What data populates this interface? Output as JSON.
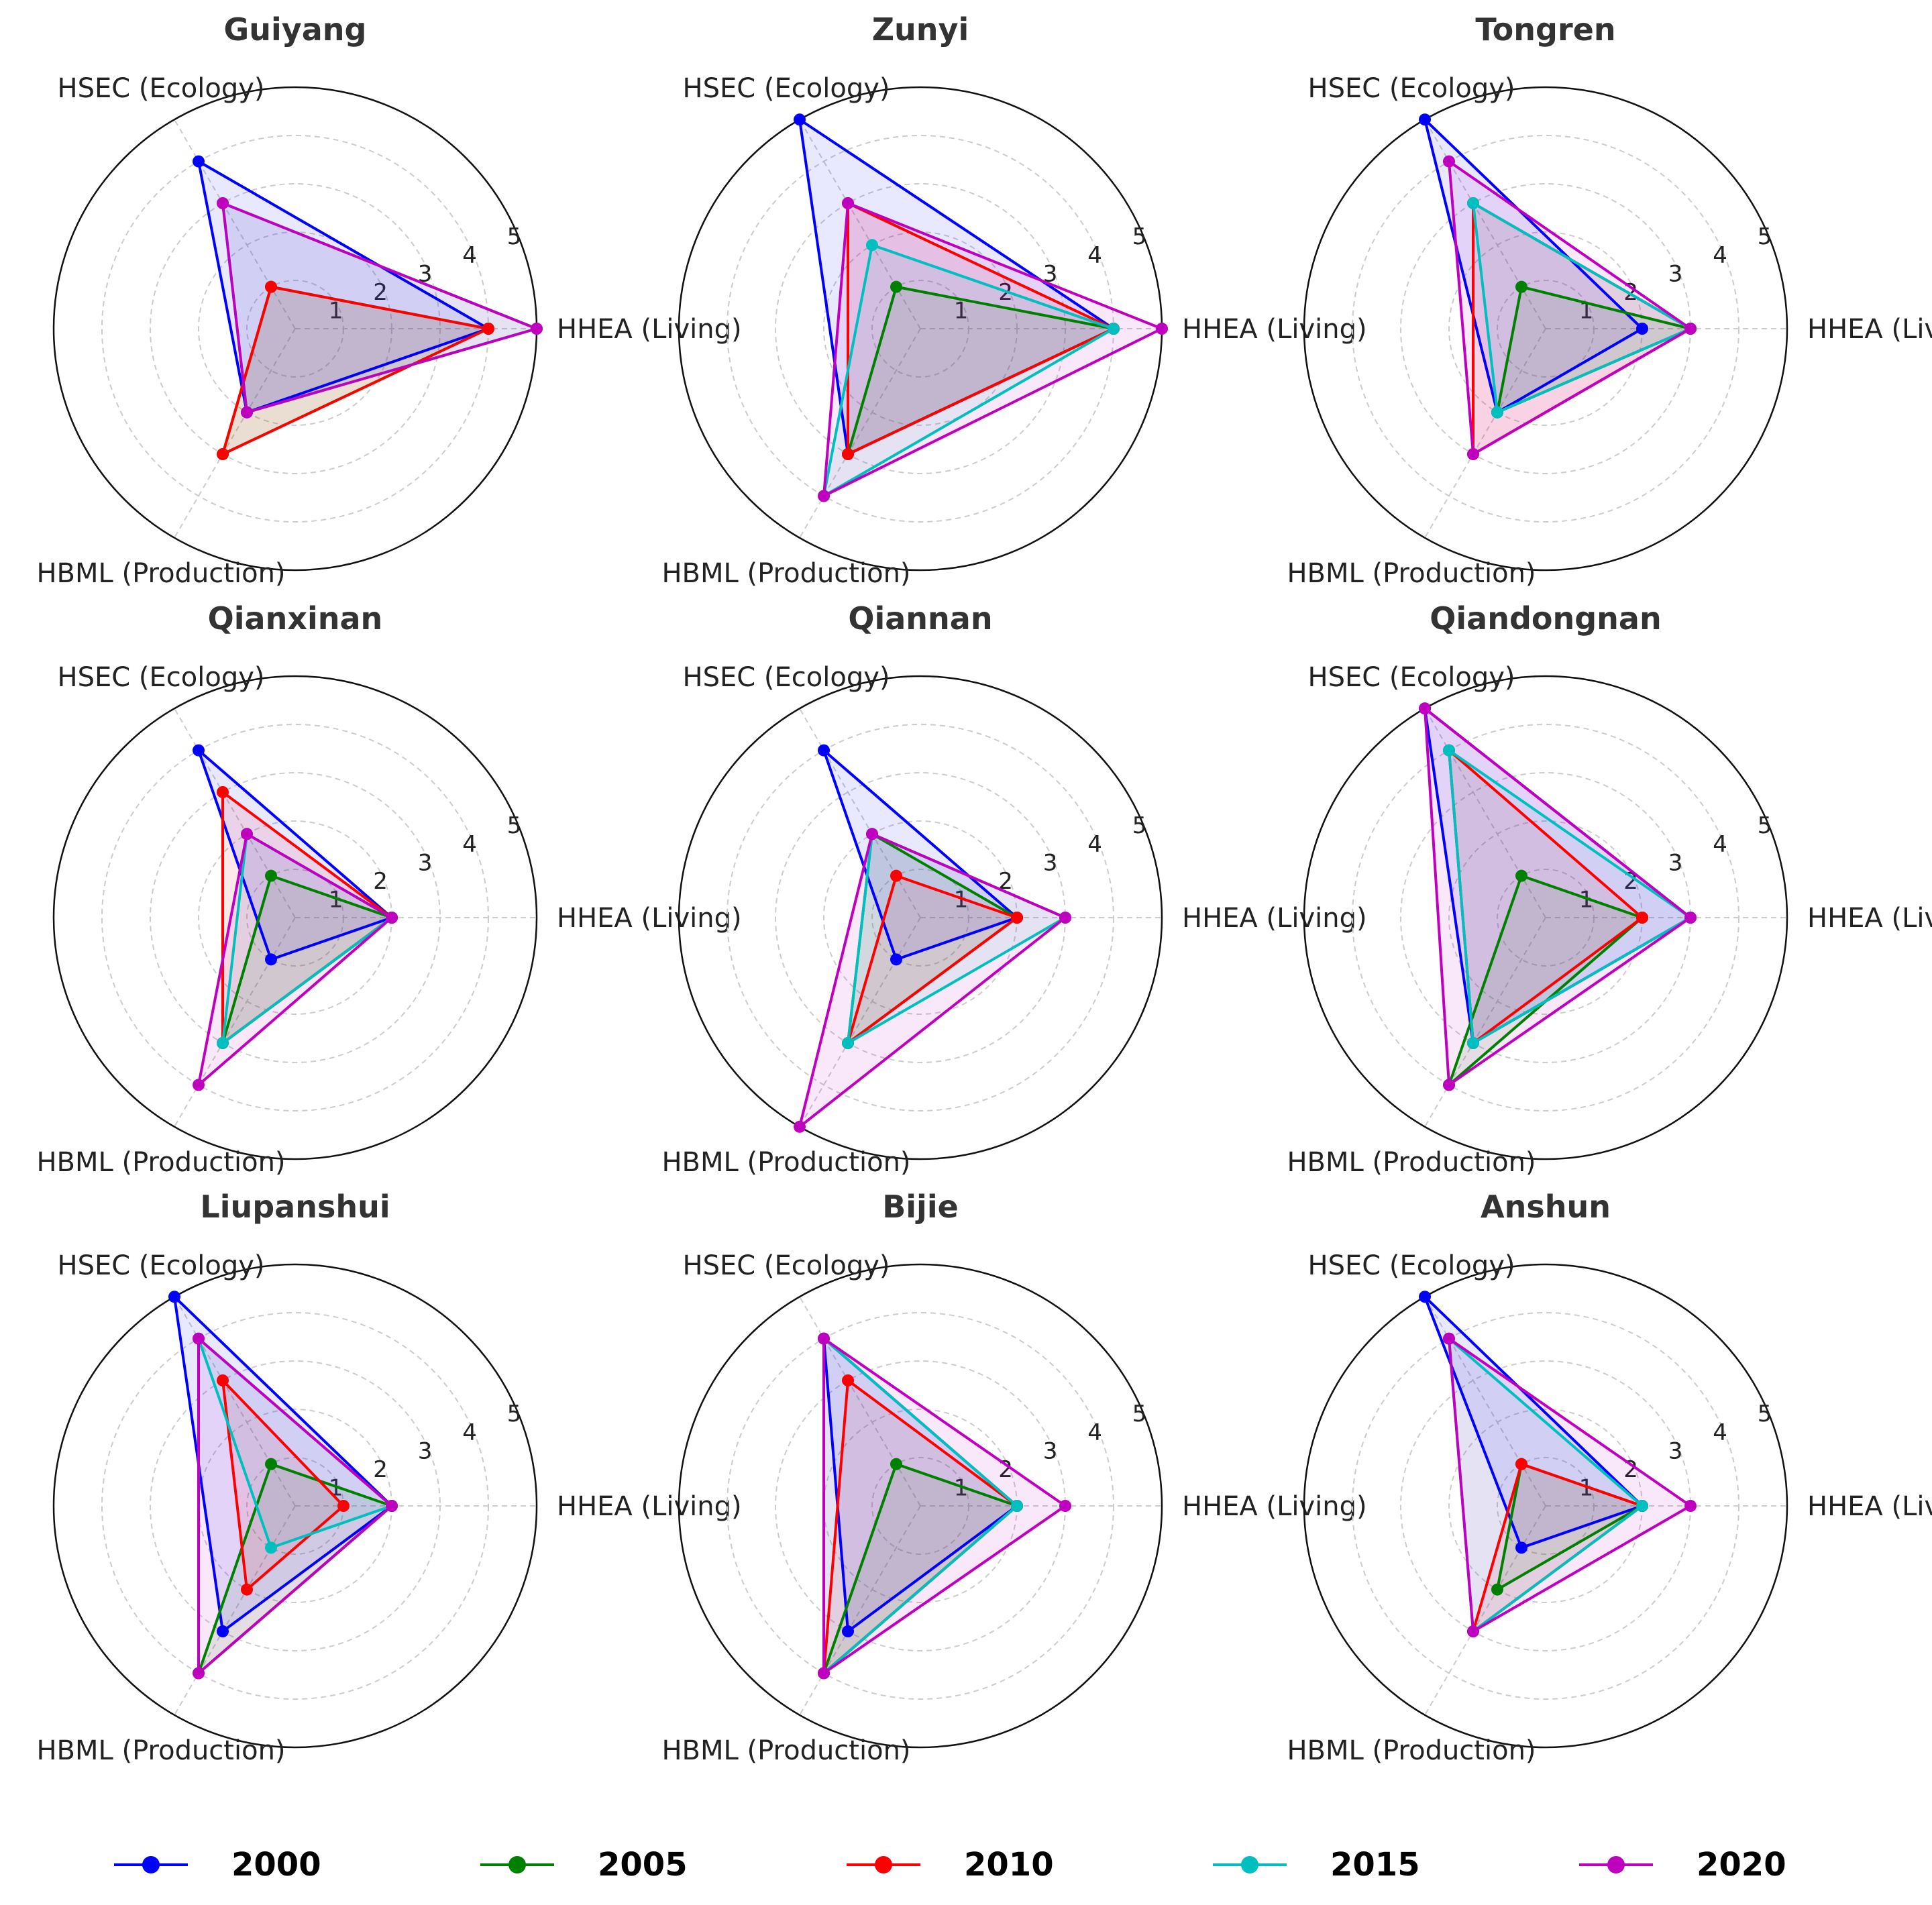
{
  "chart_data": {
    "type": "radar",
    "axes": [
      "HHEA (Living)",
      "HSEC (Ecology)",
      "HBML (Production)"
    ],
    "rlim": [
      0,
      5
    ],
    "rticks": [
      "1",
      "2",
      "3",
      "4",
      "5"
    ],
    "grid": true,
    "legend_position": "bottom",
    "series_names": [
      "2000",
      "2005",
      "2010",
      "2015",
      "2020"
    ],
    "series_colors": [
      "#0000ff",
      "#008000",
      "#ff0000",
      "#00bfbf",
      "#bf00bf"
    ],
    "panels": [
      {
        "title": "Guiyang",
        "series": [
          {
            "name": "2000",
            "values": [
              4,
              4,
              2
            ]
          },
          {
            "name": "2005",
            "values": [
              4,
              1,
              3
            ]
          },
          {
            "name": "2010",
            "values": [
              4,
              1,
              3
            ]
          },
          {
            "name": "2015",
            "values": [
              5,
              3,
              2
            ]
          },
          {
            "name": "2020",
            "values": [
              5,
              3,
              2
            ]
          }
        ]
      },
      {
        "title": "Zunyi",
        "series": [
          {
            "name": "2000",
            "values": [
              4,
              5,
              3
            ]
          },
          {
            "name": "2005",
            "values": [
              4,
              1,
              3
            ]
          },
          {
            "name": "2010",
            "values": [
              4,
              3,
              3
            ]
          },
          {
            "name": "2015",
            "values": [
              4,
              2,
              4
            ]
          },
          {
            "name": "2020",
            "values": [
              5,
              3,
              4
            ]
          }
        ]
      },
      {
        "title": "Tongren",
        "series": [
          {
            "name": "2000",
            "values": [
              2,
              5,
              2
            ]
          },
          {
            "name": "2005",
            "values": [
              3,
              1,
              2
            ]
          },
          {
            "name": "2010",
            "values": [
              3,
              3,
              3
            ]
          },
          {
            "name": "2015",
            "values": [
              3,
              3,
              2
            ]
          },
          {
            "name": "2020",
            "values": [
              3,
              4,
              3
            ]
          }
        ]
      },
      {
        "title": "Qianxinan",
        "series": [
          {
            "name": "2000",
            "values": [
              2,
              4,
              1
            ]
          },
          {
            "name": "2005",
            "values": [
              2,
              1,
              3
            ]
          },
          {
            "name": "2010",
            "values": [
              2,
              3,
              3
            ]
          },
          {
            "name": "2015",
            "values": [
              2,
              2,
              3
            ]
          },
          {
            "name": "2020",
            "values": [
              2,
              2,
              4
            ]
          }
        ]
      },
      {
        "title": "Qiannan",
        "series": [
          {
            "name": "2000",
            "values": [
              2,
              4,
              1
            ]
          },
          {
            "name": "2005",
            "values": [
              2,
              2,
              3
            ]
          },
          {
            "name": "2010",
            "values": [
              2,
              1,
              3
            ]
          },
          {
            "name": "2015",
            "values": [
              3,
              2,
              3
            ]
          },
          {
            "name": "2020",
            "values": [
              3,
              2,
              5
            ]
          }
        ]
      },
      {
        "title": "Qiandongnan",
        "series": [
          {
            "name": "2000",
            "values": [
              3,
              5,
              3
            ]
          },
          {
            "name": "2005",
            "values": [
              2,
              1,
              4
            ]
          },
          {
            "name": "2010",
            "values": [
              2,
              4,
              3
            ]
          },
          {
            "name": "2015",
            "values": [
              3,
              4,
              3
            ]
          },
          {
            "name": "2020",
            "values": [
              3,
              5,
              4
            ]
          }
        ]
      },
      {
        "title": "Liupanshui",
        "series": [
          {
            "name": "2000",
            "values": [
              2,
              5,
              3
            ]
          },
          {
            "name": "2005",
            "values": [
              2,
              1,
              4
            ]
          },
          {
            "name": "2010",
            "values": [
              1,
              3,
              2
            ]
          },
          {
            "name": "2015",
            "values": [
              2,
              4,
              1
            ]
          },
          {
            "name": "2020",
            "values": [
              2,
              4,
              4
            ]
          }
        ]
      },
      {
        "title": "Bijie",
        "series": [
          {
            "name": "2000",
            "values": [
              2,
              4,
              3
            ]
          },
          {
            "name": "2005",
            "values": [
              2,
              1,
              4
            ]
          },
          {
            "name": "2010",
            "values": [
              2,
              3,
              4
            ]
          },
          {
            "name": "2015",
            "values": [
              2,
              4,
              4
            ]
          },
          {
            "name": "2020",
            "values": [
              3,
              4,
              4
            ]
          }
        ]
      },
      {
        "title": "Anshun",
        "series": [
          {
            "name": "2000",
            "values": [
              2,
              5,
              1
            ]
          },
          {
            "name": "2005",
            "values": [
              2,
              1,
              2
            ]
          },
          {
            "name": "2010",
            "values": [
              2,
              1,
              3
            ]
          },
          {
            "name": "2015",
            "values": [
              2,
              4,
              3
            ]
          },
          {
            "name": "2020",
            "values": [
              3,
              4,
              3
            ]
          }
        ]
      }
    ]
  }
}
